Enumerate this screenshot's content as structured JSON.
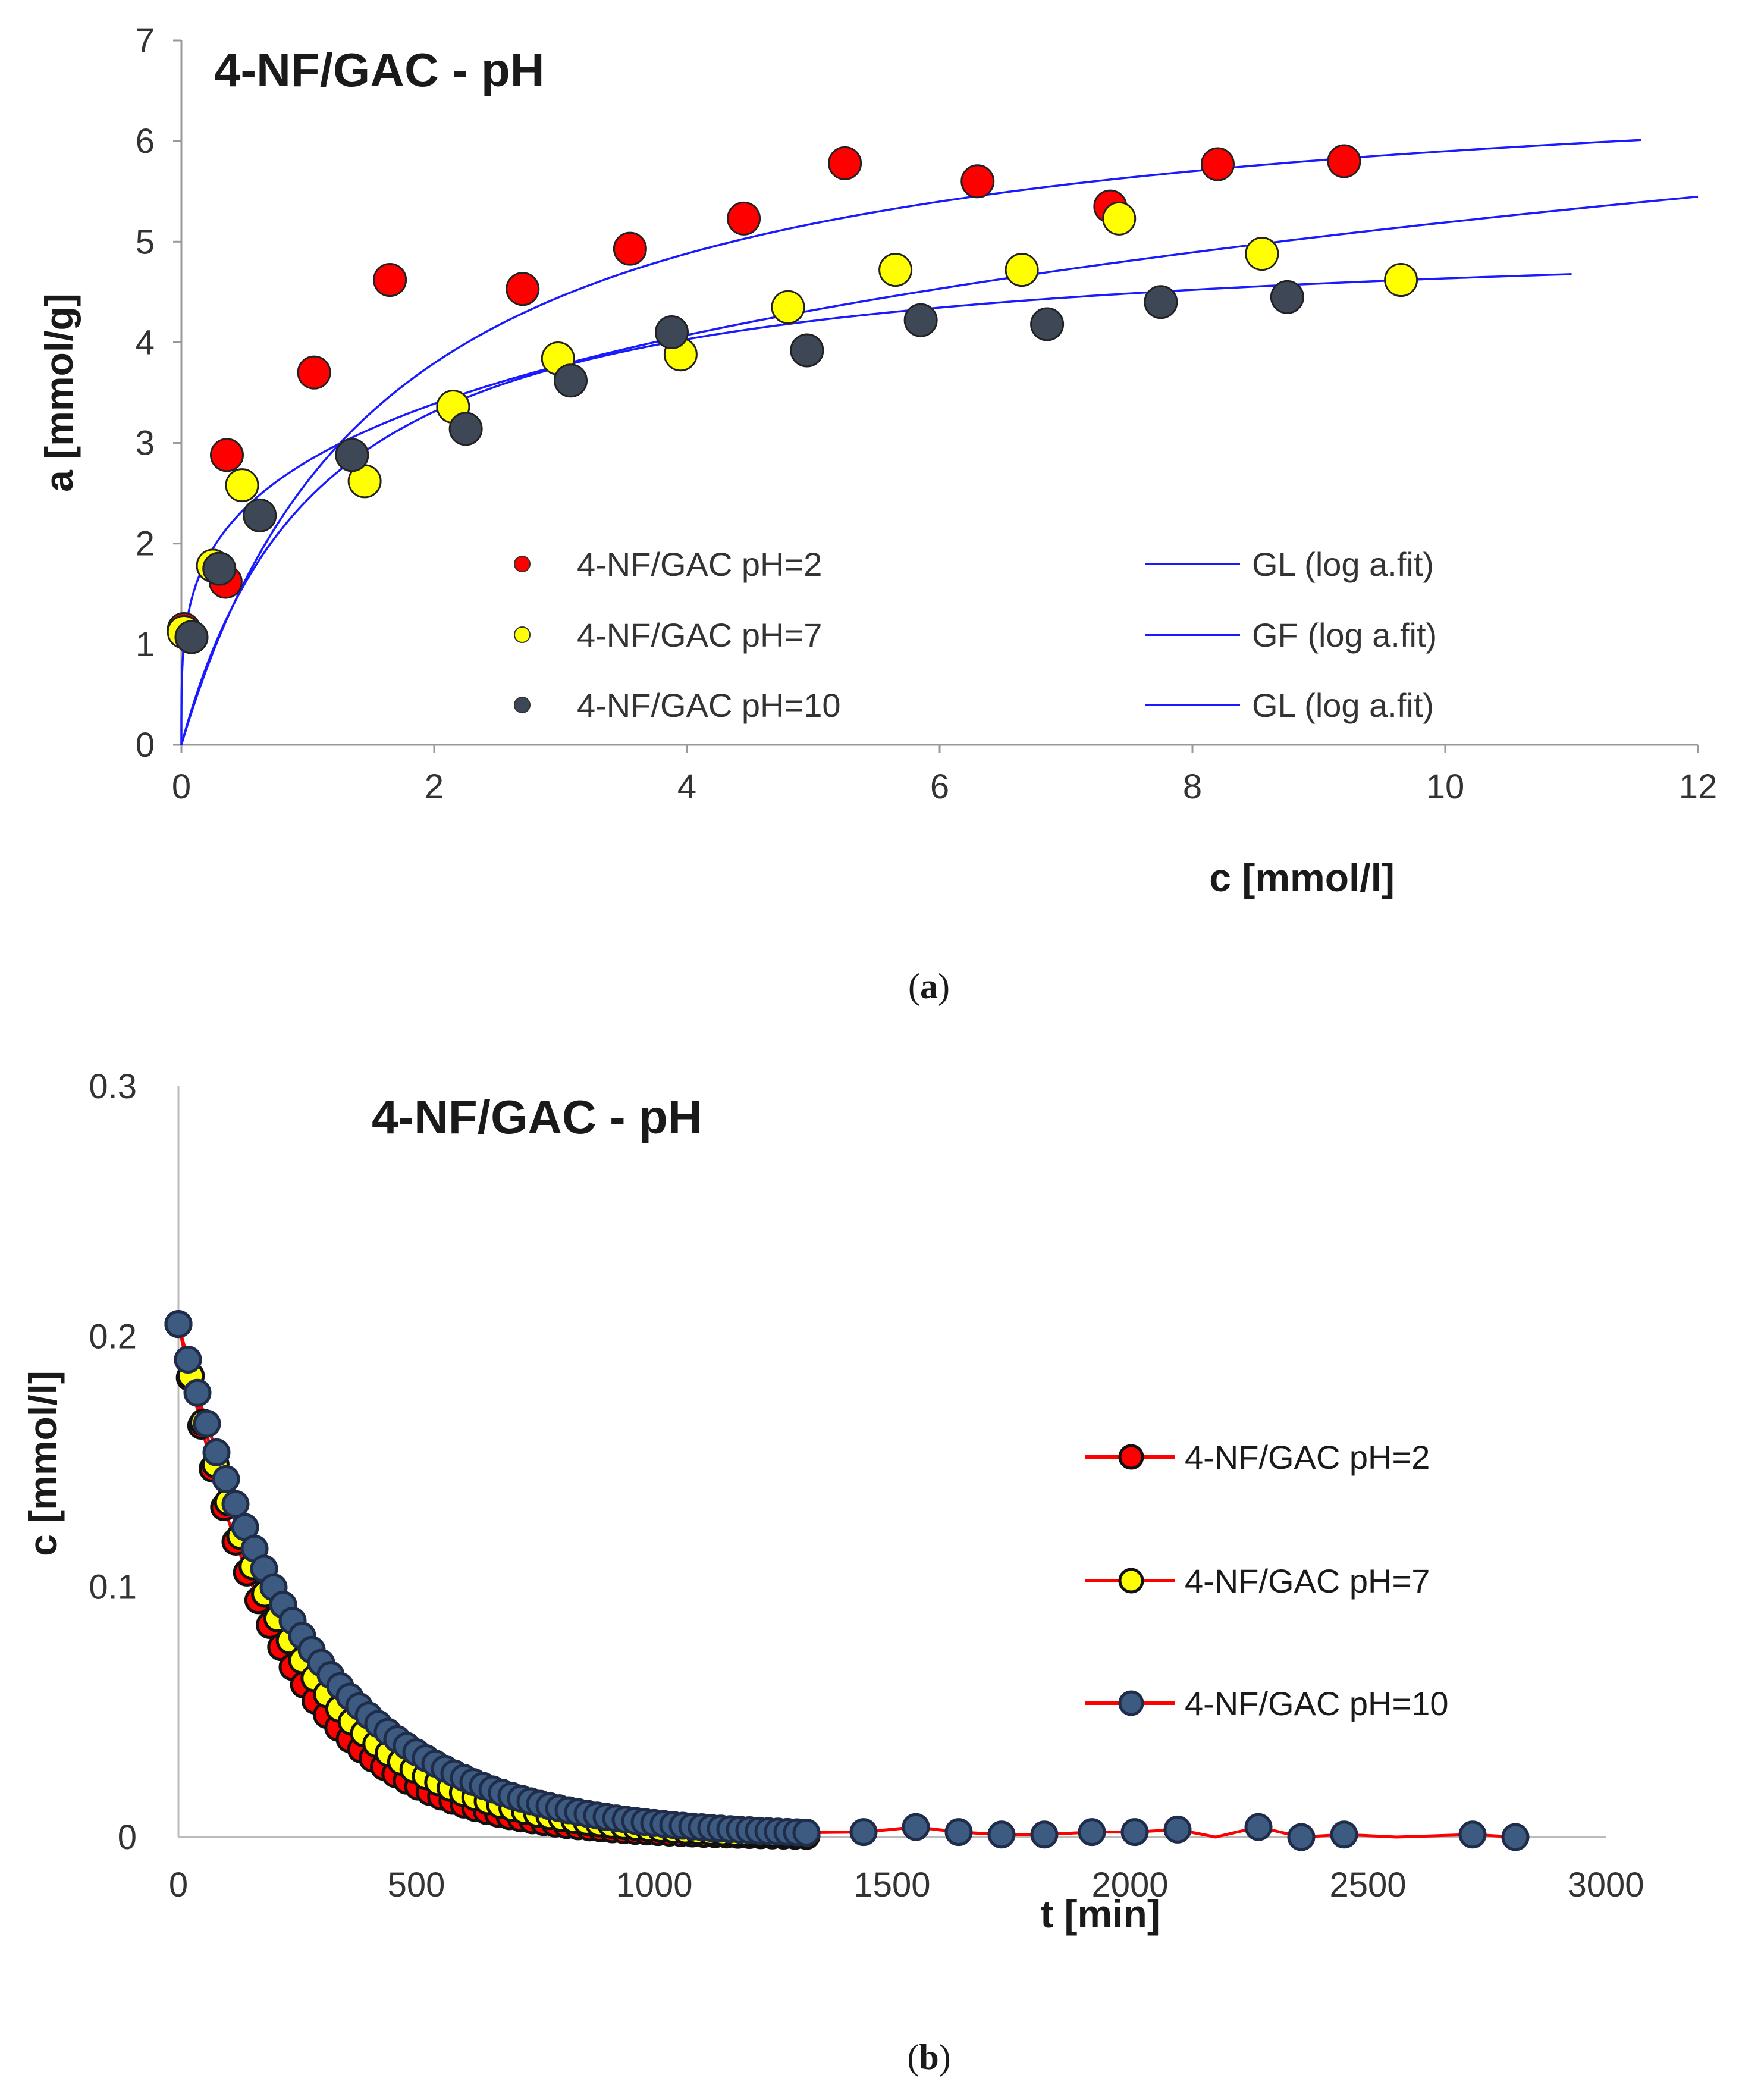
{
  "chart_data": [
    {
      "type": "scatter",
      "title": "4-NF/GAC - pH",
      "xlabel": "c [mmol/l]",
      "ylabel": "a [mmol/g]",
      "xlim": [
        0,
        12
      ],
      "ylim": [
        0,
        7
      ],
      "xticks": [
        "0",
        "2",
        "4",
        "6",
        "8",
        "10",
        "12"
      ],
      "yticks": [
        "0",
        "1",
        "2",
        "3",
        "4",
        "5",
        "6",
        "7"
      ],
      "caption_label": "a",
      "legend_markers": [
        "4-NF/GAC pH=2",
        "4-NF/GAC pH=7",
        "4-NF/GAC pH=10"
      ],
      "legend_fits": [
        "GL (log a.fit)",
        "GF (log a.fit)",
        "GL (log a.fit)"
      ],
      "series": [
        {
          "name": "4-NF/GAC pH=2",
          "color": "#ff0000",
          "x": [
            0.02,
            0.35,
            0.36,
            1.05,
            1.65,
            2.7,
            3.55,
            4.45,
            5.25,
            6.3,
            7.35,
            8.2,
            9.2
          ],
          "y": [
            1.15,
            1.62,
            2.88,
            3.7,
            4.62,
            4.53,
            4.93,
            5.23,
            5.78,
            5.6,
            5.35,
            5.77,
            5.8
          ]
        },
        {
          "name": "4-NF/GAC pH=7",
          "color": "#ffff00",
          "x": [
            0.02,
            0.25,
            0.48,
            1.45,
            2.15,
            2.98,
            3.95,
            4.8,
            5.65,
            6.65,
            7.42,
            8.55,
            9.65
          ],
          "y": [
            1.12,
            1.78,
            2.58,
            2.62,
            3.36,
            3.84,
            3.88,
            4.35,
            4.72,
            4.72,
            5.23,
            4.88,
            4.62
          ]
        },
        {
          "name": "4-NF/GAC pH=10",
          "color": "#3d4756",
          "x": [
            0.08,
            0.3,
            0.62,
            1.35,
            2.25,
            3.08,
            3.88,
            4.95,
            5.85,
            6.85,
            7.75,
            8.75
          ],
          "y": [
            1.07,
            1.75,
            2.28,
            2.88,
            3.14,
            3.62,
            4.1,
            3.92,
            4.22,
            4.18,
            4.4,
            4.45
          ]
        }
      ],
      "fits": [
        {
          "name": "GL (log a.fit)",
          "color": "#1a1aff",
          "model": "langmuir",
          "qmax": 6.85,
          "b": 0.62,
          "x_end": 11.55
        },
        {
          "name": "GF (log a.fit)",
          "color": "#1a1aff",
          "model": "freundlich",
          "k": 2.82,
          "n": 0.265,
          "x_end": 12
        },
        {
          "name": "GL (log a.fit)",
          "color": "#1a1aff",
          "model": "langmuir",
          "qmax": 5.15,
          "b": 0.9,
          "x_end": 11.0
        }
      ]
    },
    {
      "type": "line",
      "title": "4-NF/GAC - pH",
      "xlabel": "t [min]",
      "ylabel": "c [mmol/l]",
      "xlim": [
        0,
        3000
      ],
      "ylim": [
        0,
        0.3
      ],
      "xticks": [
        "0",
        "500",
        "1000",
        "1500",
        "2000",
        "2500",
        "3000"
      ],
      "yticks": [
        "0",
        "0.1",
        "0.2",
        "0.3"
      ],
      "caption_label": "b",
      "legend": [
        "4-NF/GAC pH=2",
        "4-NF/GAC pH=7",
        "4-NF/GAC pH=10"
      ],
      "series": [
        {
          "name": "4-NF/GAC pH=2",
          "marker": "#ff0000",
          "line": "#ff0000",
          "c0": 0.205,
          "k": 0.0046,
          "t_end": 1320,
          "dt": 24
        },
        {
          "name": "4-NF/GAC pH=7",
          "marker": "#ffff00",
          "line": "#ff0000",
          "c0": 0.205,
          "k": 0.0041,
          "t_end": 1320,
          "dt": 26
        },
        {
          "name": "4-NF/GAC pH=10",
          "marker": "#3d5a80",
          "line": "#ff0000",
          "c0": 0.205,
          "k": 0.0036,
          "t_end": 1330,
          "dt": 20,
          "tail_t": [
            1440,
            1550,
            1640,
            1730,
            1820,
            1920,
            2010,
            2100,
            2180,
            2270,
            2360,
            2450,
            2560,
            2720,
            2810
          ],
          "tail_c": [
            0.002,
            0.004,
            0.002,
            0.001,
            0.001,
            0.002,
            0.002,
            0.003,
            0.0,
            0.004,
            0.0,
            0.001,
            0.0,
            0.001,
            0.0
          ],
          "tail_markers": [
            true,
            true,
            true,
            true,
            true,
            true,
            true,
            true,
            false,
            true,
            true,
            true,
            false,
            true,
            true
          ]
        }
      ]
    }
  ]
}
